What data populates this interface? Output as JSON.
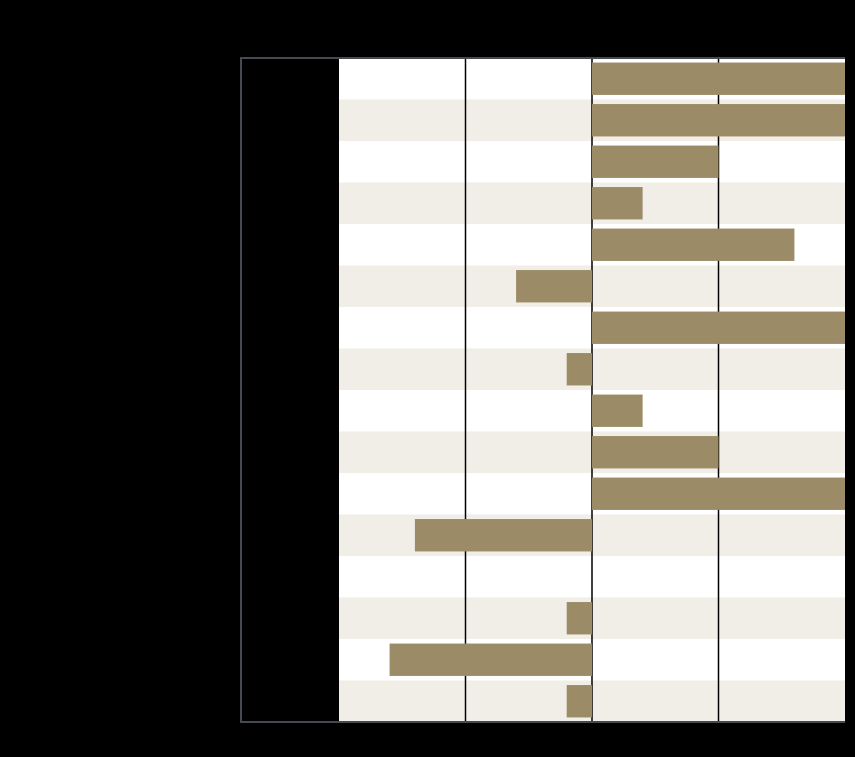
{
  "chart_data": {
    "type": "bar",
    "orientation": "horizontal",
    "title": "",
    "xlabel": "",
    "ylabel": "",
    "categories": [
      "",
      "",
      "",
      "",
      "",
      "",
      "",
      "",
      "",
      "",
      "",
      "",
      "",
      "",
      "",
      ""
    ],
    "values": [
      2.0,
      2.0,
      1.0,
      0.4,
      1.6,
      -0.6,
      2.0,
      -0.2,
      0.4,
      1.0,
      2.0,
      -1.4,
      0.0,
      -0.2,
      -1.6,
      -0.2
    ],
    "xlim": [
      -2,
      2
    ],
    "x_gridlines": [
      -1,
      0,
      1
    ],
    "grid": true,
    "legend": "none",
    "row_band_colors": [
      "#ffffff",
      "#f1eee7"
    ]
  },
  "colors": {
    "background": "#000000",
    "bar": "#9b8b66",
    "frame": "#454a52",
    "gridline": "#000000"
  }
}
